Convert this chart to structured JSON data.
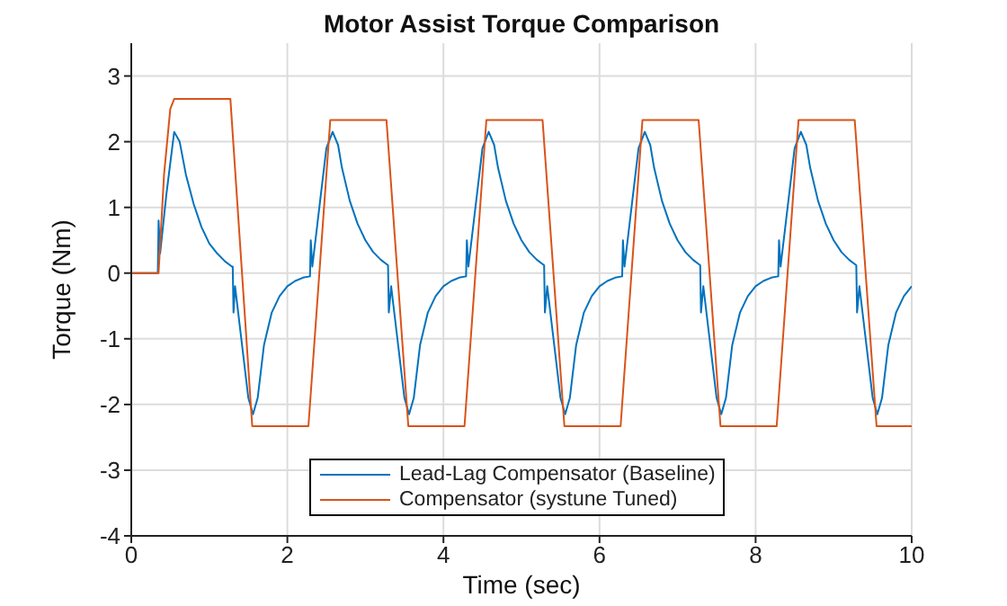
{
  "chart_data": {
    "type": "line",
    "title": "Motor Assist Torque Comparison",
    "xlabel": "Time (sec)",
    "ylabel": "Torque (Nm)",
    "xlim": [
      0,
      10
    ],
    "ylim": [
      -4,
      3.5
    ],
    "xticks": [
      0,
      2,
      4,
      6,
      8,
      10
    ],
    "yticks": [
      -4,
      -3,
      -2,
      -1,
      0,
      1,
      2,
      3
    ],
    "grid": true,
    "legend": "bottom",
    "marker": "none",
    "line_style": "solid",
    "series": [
      {
        "name": "Lead-Lag Compensator (Baseline)",
        "color": "#0072bd",
        "x": [
          0,
          0.34,
          0.35,
          0.37,
          0.45,
          0.55,
          0.62,
          0.7,
          0.8,
          0.9,
          1.0,
          1.1,
          1.2,
          1.29,
          1.3,
          1.31,
          1.33,
          1.4,
          1.5,
          1.56,
          1.62,
          1.7,
          1.8,
          1.9,
          2.0,
          2.1,
          2.2,
          2.29,
          2.3,
          2.32,
          2.4,
          2.5,
          2.58,
          2.65,
          2.7,
          2.8,
          2.9,
          3.0,
          3.1,
          3.2,
          3.29,
          3.3,
          3.33,
          3.4,
          3.5,
          3.56,
          3.62,
          3.7,
          3.8,
          3.9,
          4.0,
          4.1,
          4.2,
          4.29,
          4.3,
          4.32,
          4.4,
          4.5,
          4.58,
          4.65,
          4.7,
          4.8,
          4.9,
          5.0,
          5.1,
          5.2,
          5.29,
          5.3,
          5.33,
          5.4,
          5.5,
          5.56,
          5.62,
          5.7,
          5.8,
          5.9,
          6.0,
          6.1,
          6.2,
          6.29,
          6.3,
          6.32,
          6.4,
          6.5,
          6.58,
          6.65,
          6.7,
          6.8,
          6.9,
          7.0,
          7.1,
          7.2,
          7.29,
          7.3,
          7.33,
          7.4,
          7.5,
          7.56,
          7.62,
          7.7,
          7.8,
          7.9,
          8.0,
          8.1,
          8.2,
          8.29,
          8.3,
          8.32,
          8.4,
          8.5,
          8.58,
          8.65,
          8.7,
          8.8,
          8.9,
          9.0,
          9.1,
          9.2,
          9.29,
          9.3,
          9.33,
          9.4,
          9.5,
          9.56,
          9.62,
          9.7,
          9.8,
          9.9,
          10
        ],
        "values": [
          0,
          0,
          0.8,
          0.3,
          1.2,
          2.15,
          2.0,
          1.5,
          1.05,
          0.7,
          0.45,
          0.3,
          0.18,
          0.1,
          0.1,
          -0.6,
          -0.2,
          -0.9,
          -1.9,
          -2.15,
          -1.9,
          -1.1,
          -0.6,
          -0.35,
          -0.2,
          -0.12,
          -0.07,
          -0.05,
          0.5,
          0.1,
          0.9,
          1.9,
          2.15,
          1.95,
          1.6,
          1.1,
          0.75,
          0.5,
          0.32,
          0.2,
          0.12,
          -0.6,
          -0.2,
          -0.9,
          -1.9,
          -2.15,
          -1.9,
          -1.1,
          -0.6,
          -0.35,
          -0.2,
          -0.12,
          -0.07,
          -0.05,
          0.5,
          0.1,
          0.9,
          1.9,
          2.15,
          1.95,
          1.6,
          1.1,
          0.75,
          0.5,
          0.32,
          0.2,
          0.12,
          -0.6,
          -0.2,
          -0.9,
          -1.9,
          -2.15,
          -1.9,
          -1.1,
          -0.6,
          -0.35,
          -0.2,
          -0.12,
          -0.07,
          -0.05,
          0.5,
          0.1,
          0.9,
          1.9,
          2.15,
          1.95,
          1.6,
          1.1,
          0.75,
          0.5,
          0.32,
          0.2,
          0.12,
          -0.6,
          -0.2,
          -0.9,
          -1.9,
          -2.15,
          -1.9,
          -1.1,
          -0.6,
          -0.35,
          -0.2,
          -0.12,
          -0.07,
          -0.05,
          0.5,
          0.1,
          0.9,
          1.9,
          2.15,
          1.95,
          1.6,
          1.1,
          0.75,
          0.5,
          0.32,
          0.2,
          0.12,
          -0.6,
          -0.2,
          -0.9,
          -1.9,
          -2.15,
          -1.9,
          -1.1,
          -0.6,
          -0.35,
          -0.2
        ]
      },
      {
        "name": "Compensator (systune Tuned)",
        "color": "#d95319",
        "x": [
          0,
          0.35,
          0.42,
          0.5,
          0.55,
          1.27,
          1.55,
          2.27,
          2.55,
          3.27,
          3.55,
          4.27,
          4.55,
          5.27,
          5.55,
          6.27,
          6.55,
          7.27,
          7.55,
          8.27,
          8.55,
          9.27,
          9.55,
          10
        ],
        "values": [
          0,
          0,
          1.5,
          2.5,
          2.65,
          2.65,
          -2.33,
          -2.33,
          2.33,
          2.33,
          -2.33,
          -2.33,
          2.33,
          2.33,
          -2.33,
          -2.33,
          2.33,
          2.33,
          -2.33,
          -2.33,
          2.33,
          2.33,
          -2.33,
          -2.33
        ]
      }
    ]
  }
}
